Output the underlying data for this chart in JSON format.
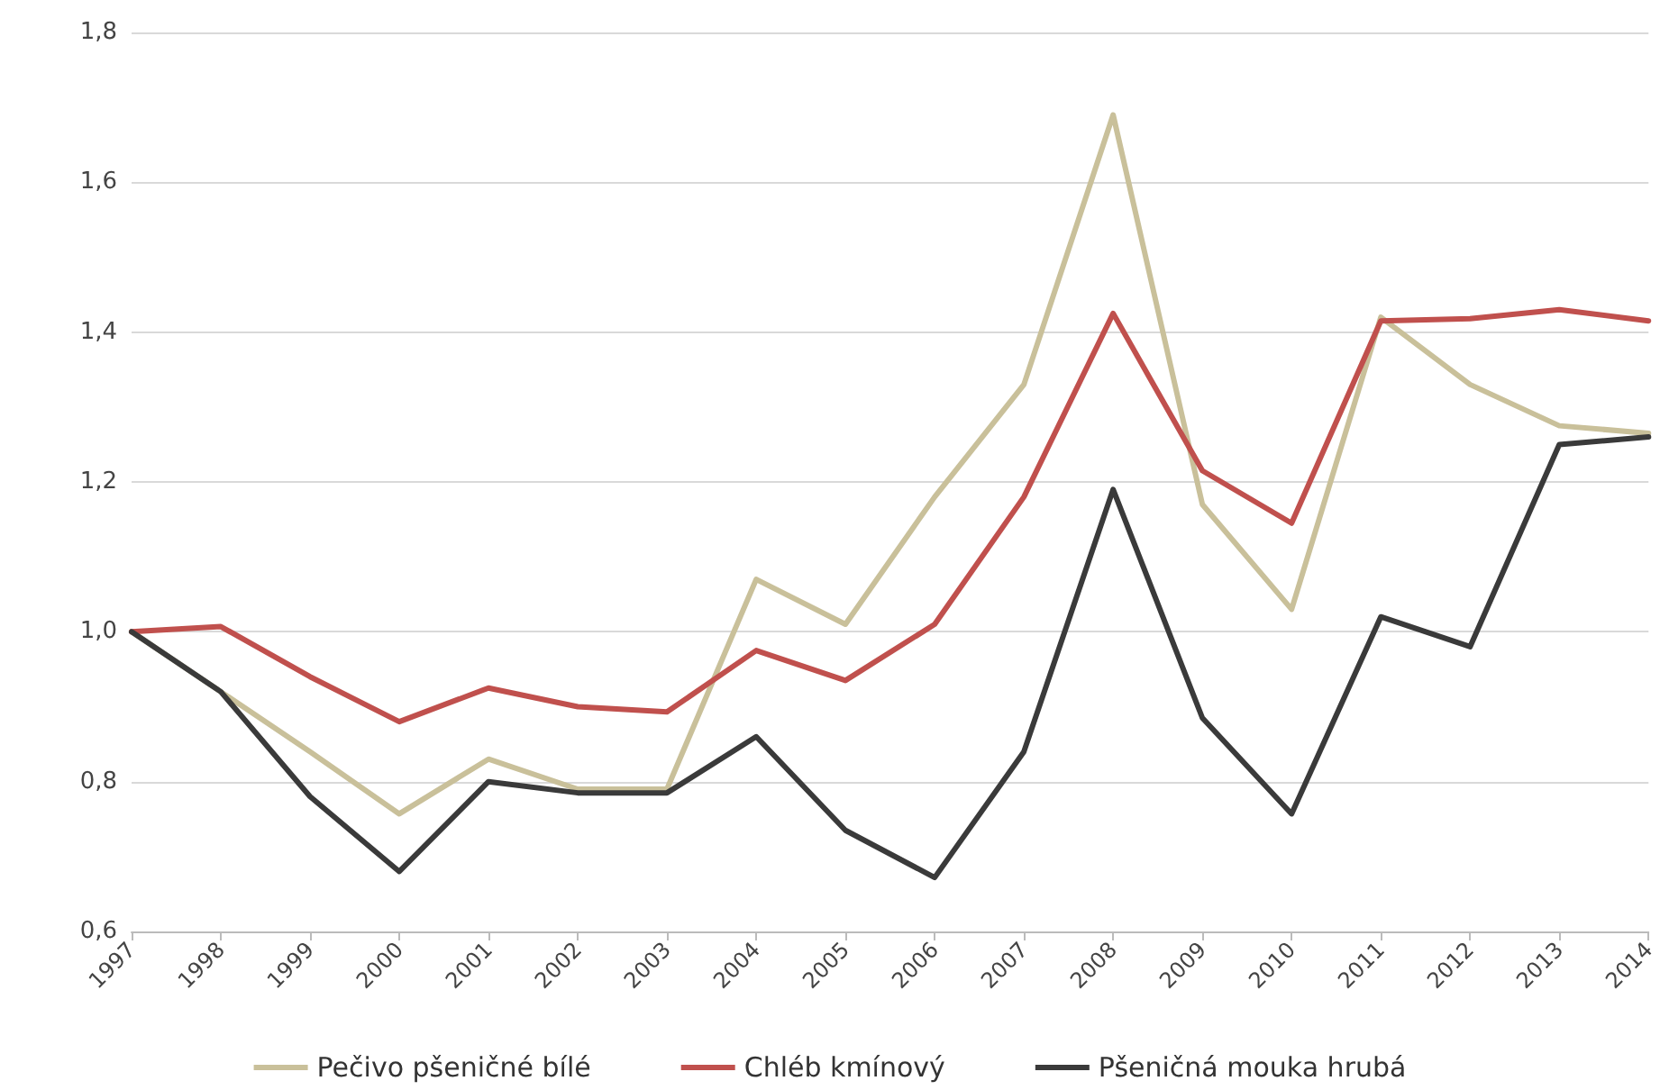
{
  "chart_data": {
    "type": "line",
    "categories": [
      "1997",
      "1998",
      "1999",
      "2000",
      "2001",
      "2002",
      "2003",
      "2004",
      "2005",
      "2006",
      "2007",
      "2008",
      "2009",
      "2010",
      "2011",
      "2012",
      "2013",
      "2014"
    ],
    "series": [
      {
        "name": "Pečivo pšeničné bílé",
        "color": "#c9c09a",
        "values": [
          1.0,
          0.92,
          0.84,
          0.757,
          0.83,
          0.79,
          0.79,
          1.07,
          1.01,
          1.18,
          1.33,
          1.69,
          1.17,
          1.03,
          1.42,
          1.33,
          1.275,
          1.265
        ]
      },
      {
        "name": "Chléb kmínový",
        "color": "#c0504d",
        "values": [
          1.0,
          1.007,
          0.94,
          0.88,
          0.925,
          0.9,
          0.893,
          0.975,
          0.935,
          1.01,
          1.18,
          1.425,
          1.215,
          1.145,
          1.415,
          1.418,
          1.43,
          1.415
        ]
      },
      {
        "name": "Pšeničná mouka hrubá",
        "color": "#3a3a3a",
        "values": [
          1.0,
          0.92,
          0.78,
          0.68,
          0.8,
          0.785,
          0.785,
          0.86,
          0.735,
          0.672,
          0.84,
          1.19,
          0.885,
          0.757,
          1.02,
          0.98,
          1.25,
          1.26
        ]
      }
    ],
    "ylim": [
      0.6,
      1.8
    ],
    "yticks": [
      {
        "value": 0.6,
        "label": "0,6"
      },
      {
        "value": 0.8,
        "label": "0,8"
      },
      {
        "value": 1.0,
        "label": "1,0"
      },
      {
        "value": 1.2,
        "label": "1,2"
      },
      {
        "value": 1.4,
        "label": "1,4"
      },
      {
        "value": 1.6,
        "label": "1,6"
      },
      {
        "value": 1.8,
        "label": "1,8"
      }
    ],
    "grid": "y",
    "legend": "bottom",
    "marker": "none",
    "line_style": "solid"
  }
}
